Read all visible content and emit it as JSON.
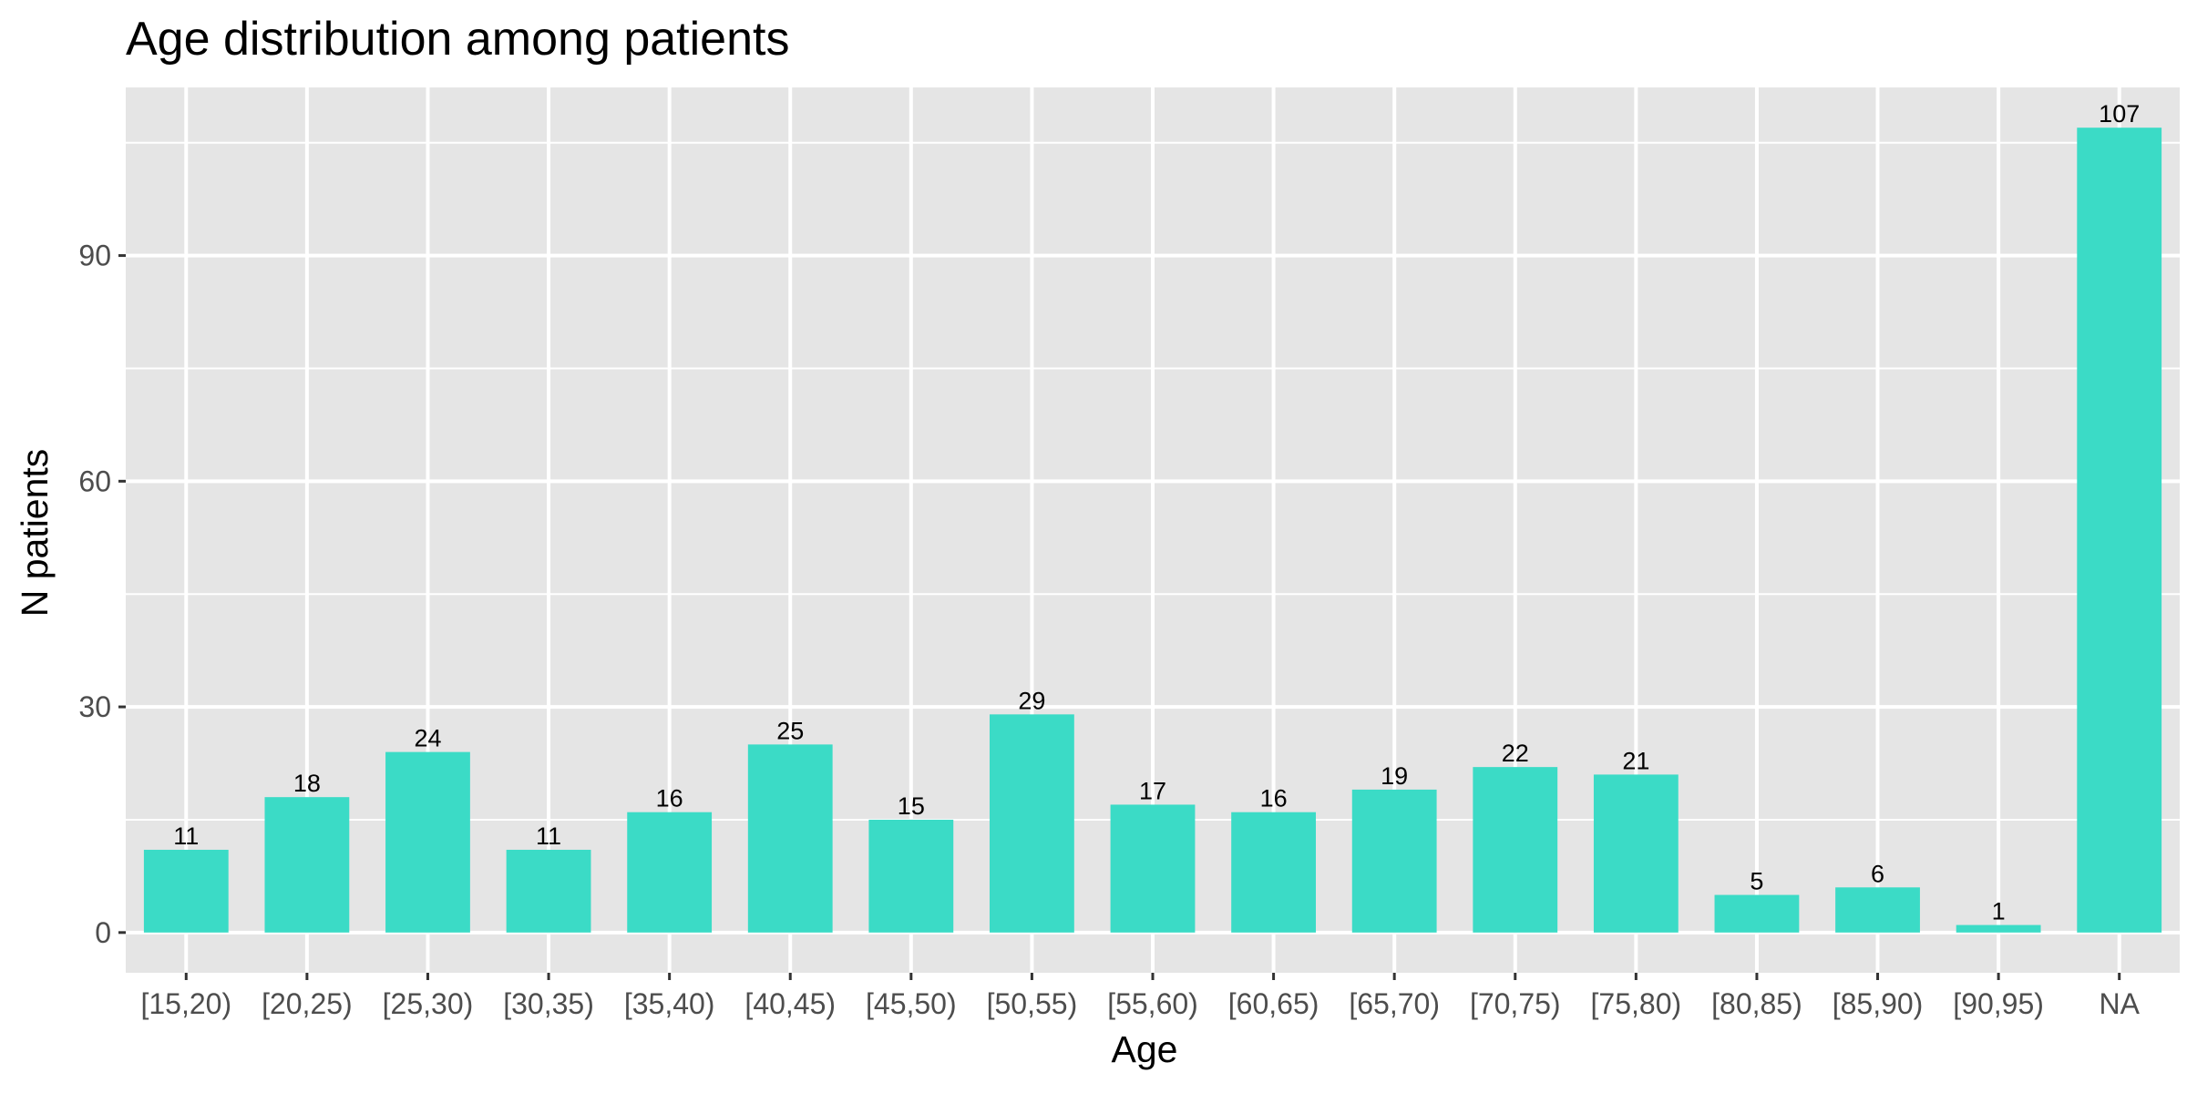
{
  "chart_data": {
    "type": "bar",
    "title": "Age distribution among patients",
    "xlabel": "Age",
    "ylabel": "N patients",
    "categories": [
      "[15,20)",
      "[20,25)",
      "[25,30)",
      "[30,35)",
      "[35,40)",
      "[40,45)",
      "[45,50)",
      "[50,55)",
      "[55,60)",
      "[60,65)",
      "[65,70)",
      "[70,75)",
      "[75,80)",
      "[80,85)",
      "[85,90)",
      "[90,95)",
      "NA"
    ],
    "values": [
      11,
      18,
      24,
      11,
      16,
      25,
      15,
      29,
      17,
      16,
      19,
      22,
      21,
      5,
      6,
      1,
      107
    ],
    "ylim": [
      -5.35,
      112.35
    ],
    "yticks": [
      0,
      30,
      60,
      90
    ],
    "grid": true,
    "legend": "none",
    "colors": {
      "bar": "#3BDBC6",
      "panel": "#E5E5E5",
      "grid": "#FFFFFF",
      "tick_text": "#4D4D4D",
      "tick_mark": "#333333"
    }
  }
}
